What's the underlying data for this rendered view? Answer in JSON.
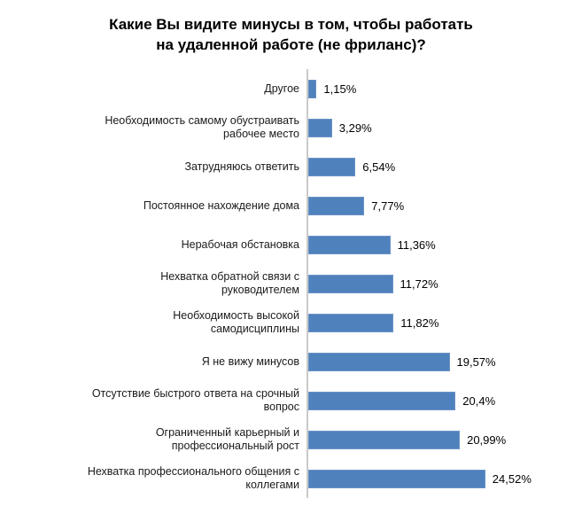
{
  "chart_data": {
    "type": "bar",
    "orientation": "horizontal",
    "title": "Какие Вы видите минусы в том, чтобы работать на удаленной работе (не фриланс)?",
    "title_lines": [
      "Какие Вы видите минусы в том, чтобы работать",
      "на удаленной работе (не фриланс)?"
    ],
    "categories": [
      "Другое",
      "Необходимость самому обустраивать рабочее место",
      "Затрудняюсь ответить",
      "Постоянное нахождение дома",
      "Нерабочая обстановка",
      "Нехватка обратной связи с руководителем",
      "Необходимость высокой самодисциплины",
      "Я не вижу минусов",
      "Отсутствие быстрого ответа на срочный вопрос",
      "Ограниченный карьерный и профессиональный рост",
      "Нехватка профессионального общения с коллегами"
    ],
    "category_lines": [
      [
        "Другое"
      ],
      [
        "Необходимость самому обустраивать",
        "рабочее место"
      ],
      [
        "Затрудняюсь ответить"
      ],
      [
        "Постоянное нахождение дома"
      ],
      [
        "Нерабочая обстановка"
      ],
      [
        "Нехватка обратной связи с",
        "руководителем"
      ],
      [
        "Необходимость высокой",
        "самодисциплины"
      ],
      [
        "Я не вижу минусов"
      ],
      [
        "Отсутствие быстрого ответа на срочный",
        "вопрос"
      ],
      [
        "Ограниченный карьерный и",
        "профессиональный рост"
      ],
      [
        "Нехватка профессионального общения с",
        "коллегами"
      ]
    ],
    "values": [
      1.15,
      3.29,
      6.54,
      7.77,
      11.36,
      11.72,
      11.82,
      19.57,
      20.4,
      20.99,
      24.52
    ],
    "value_labels": [
      "1,15%",
      "3,29%",
      "6,54%",
      "7,77%",
      "11,36%",
      "11,72%",
      "11,82%",
      "19,57%",
      "20,4%",
      "20,99%",
      "24,52%"
    ],
    "xlim": [
      0,
      26
    ],
    "grid": false,
    "legend": false,
    "value_labels_position": "right-of-bar",
    "bar_color": "#4F81BD",
    "bar_border_color": "#6C93C6",
    "axis_line_color": "#C9C9C9",
    "title_color": "#000000",
    "label_color": "#1A1A1A",
    "background": "#FFFFFF"
  }
}
